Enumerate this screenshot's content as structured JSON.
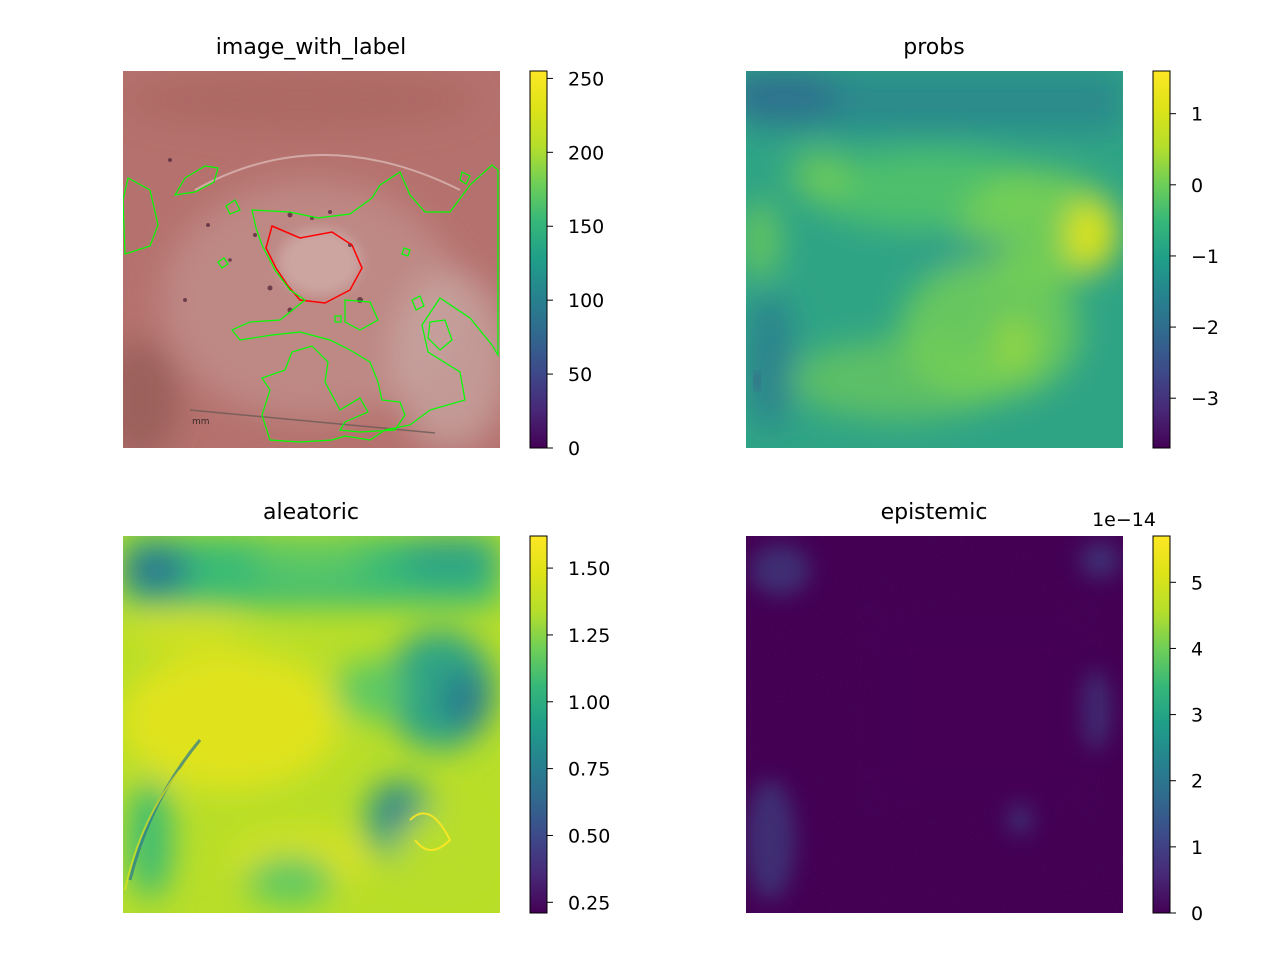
{
  "chart_data": [
    {
      "type": "heatmap",
      "title": "image_with_label",
      "colorbar": {
        "ticks": [
          0,
          50,
          100,
          150,
          200,
          250
        ],
        "tick_labels": [
          "0",
          "50",
          "100",
          "150",
          "200",
          "250"
        ],
        "range": [
          0,
          255
        ],
        "colormap": "viridis"
      },
      "overlay": {
        "label_contour_color": "#ff0000",
        "prediction_contour_color": "#00ff00",
        "ruler_text": "mm"
      }
    },
    {
      "type": "heatmap",
      "title": "probs",
      "colorbar": {
        "ticks": [
          -3,
          -2,
          -1,
          0,
          1
        ],
        "tick_labels": [
          "−3",
          "−2",
          "−1",
          "0",
          "1"
        ],
        "range": [
          -3.7,
          1.6
        ],
        "colormap": "viridis"
      }
    },
    {
      "type": "heatmap",
      "title": "aleatoric",
      "colorbar": {
        "ticks": [
          0.25,
          0.5,
          0.75,
          1.0,
          1.25,
          1.5
        ],
        "tick_labels": [
          "0.25",
          "0.50",
          "0.75",
          "1.00",
          "1.25",
          "1.50"
        ],
        "range": [
          0.21,
          1.62
        ],
        "colormap": "viridis"
      }
    },
    {
      "type": "heatmap",
      "title": "epistemic",
      "colorbar": {
        "ticks": [
          0,
          1,
          2,
          3,
          4,
          5
        ],
        "tick_labels": [
          "0",
          "1",
          "2",
          "3",
          "4",
          "5"
        ],
        "range": [
          0,
          5.7
        ],
        "offset_text": "1e−14",
        "colormap": "viridis"
      }
    }
  ]
}
